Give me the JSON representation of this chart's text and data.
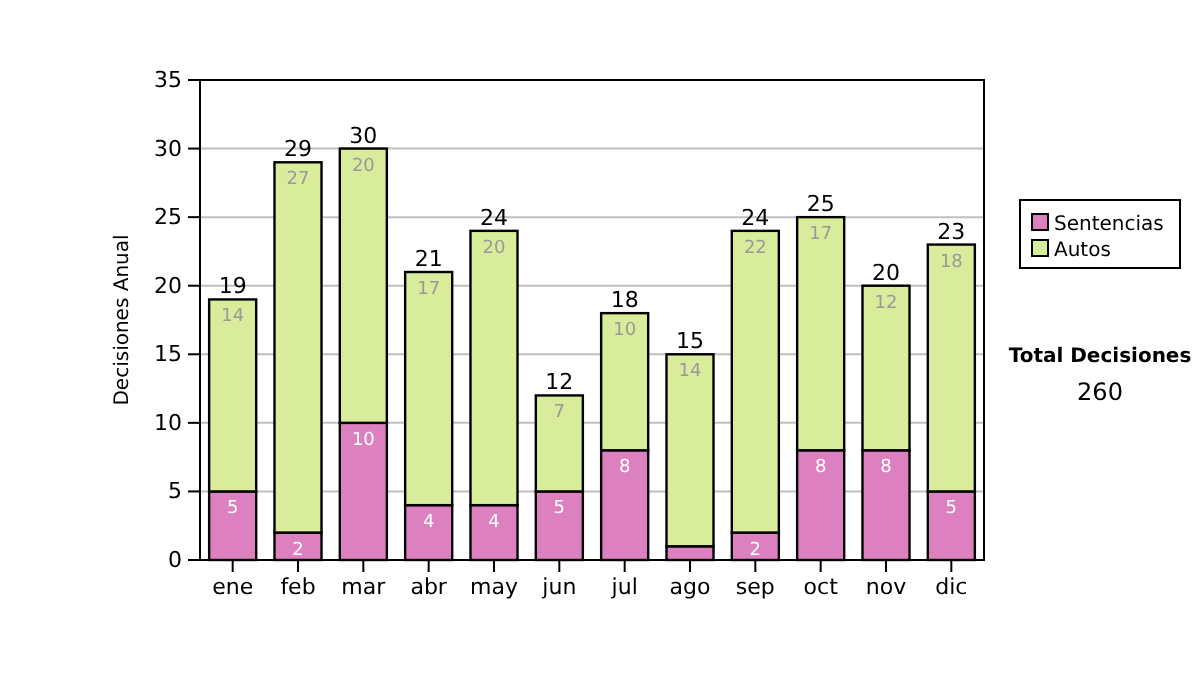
{
  "chart_data": {
    "type": "bar",
    "stacked": true,
    "ylabel": "Decisiones Anual",
    "categories": [
      "ene",
      "feb",
      "mar",
      "abr",
      "may",
      "jun",
      "jul",
      "ago",
      "sep",
      "oct",
      "nov",
      "dic"
    ],
    "series": [
      {
        "name": "Sentencias",
        "color": "#dd80c0",
        "values": [
          5,
          2,
          10,
          4,
          4,
          5,
          8,
          1,
          2,
          8,
          8,
          5
        ],
        "value_labels": [
          "5",
          "2",
          "10",
          "4",
          "4",
          "5",
          "8",
          null,
          "2",
          "8",
          "8",
          "5"
        ]
      },
      {
        "name": "Autos",
        "color": "#d8ec9b",
        "values": [
          14,
          27,
          20,
          17,
          20,
          7,
          10,
          14,
          22,
          17,
          12,
          18
        ],
        "value_labels": [
          "14",
          "27",
          "20",
          "17",
          "20",
          "7",
          "10",
          "14",
          "22",
          "17",
          "12",
          "18"
        ]
      }
    ],
    "totals": [
      "19",
      "29",
      "30",
      "21",
      "24",
      "12",
      "18",
      "15",
      "24",
      "25",
      "20",
      "23"
    ],
    "ylim": [
      0,
      35
    ],
    "yticks": [
      0,
      5,
      10,
      15,
      20,
      25,
      30,
      35
    ],
    "grid": "y",
    "legend": "right",
    "annotations": [
      "Total Decisiones",
      "260"
    ]
  }
}
